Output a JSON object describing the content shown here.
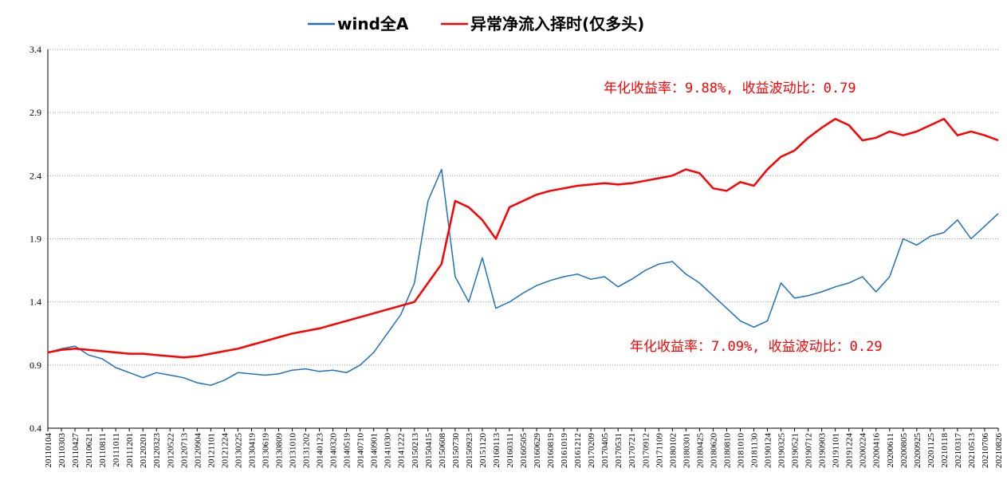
{
  "chart_data": {
    "type": "line",
    "title": "",
    "xlabel": "",
    "ylabel": "",
    "ylim": [
      0.4,
      3.4
    ],
    "yticks": [
      "0.4",
      "0.9",
      "1.4",
      "1.9",
      "2.4",
      "2.9",
      "3.4"
    ],
    "x": [
      "20110104",
      "20110303",
      "20110427",
      "20110621",
      "20110811",
      "20111011",
      "20111201",
      "20120201",
      "20120323",
      "20120522",
      "20120713",
      "20120904",
      "20121101",
      "20121224",
      "20130225",
      "20130419",
      "20130619",
      "20130809",
      "20131010",
      "20131202",
      "20140123",
      "20140320",
      "20140519",
      "20140710",
      "20140901",
      "20141030",
      "20141222",
      "20150213",
      "20150415",
      "20150608",
      "20150730",
      "20150923",
      "20151120",
      "20160113",
      "20160311",
      "20160505",
      "20160629",
      "20160819",
      "20161019",
      "20161212",
      "20170209",
      "20170405",
      "20170531",
      "20170721",
      "20170912",
      "20171109",
      "20180102",
      "20180301",
      "20180425",
      "20180620",
      "20180810",
      "20181010",
      "20181130",
      "20190124",
      "20190325",
      "20190521",
      "20190712",
      "20190903",
      "20191101",
      "20191224",
      "20200224",
      "20200416",
      "20200611",
      "20200805",
      "20200925",
      "20201125",
      "20210118",
      "20210317",
      "20210513",
      "20210706",
      "20210826"
    ],
    "series": [
      {
        "name": "wind全A",
        "color": "#1f6fbf",
        "values": [
          1.0,
          1.03,
          1.05,
          0.98,
          0.95,
          0.88,
          0.84,
          0.8,
          0.84,
          0.82,
          0.8,
          0.76,
          0.74,
          0.78,
          0.84,
          0.83,
          0.82,
          0.83,
          0.86,
          0.87,
          0.85,
          0.86,
          0.84,
          0.9,
          1.0,
          1.15,
          1.3,
          1.55,
          2.2,
          2.45,
          1.6,
          1.4,
          1.75,
          1.35,
          1.4,
          1.47,
          1.53,
          1.57,
          1.6,
          1.62,
          1.58,
          1.6,
          1.52,
          1.58,
          1.65,
          1.7,
          1.72,
          1.62,
          1.55,
          1.45,
          1.35,
          1.25,
          1.2,
          1.25,
          1.55,
          1.43,
          1.45,
          1.48,
          1.52,
          1.55,
          1.6,
          1.48,
          1.6,
          1.9,
          1.85,
          1.92,
          1.95,
          2.05,
          1.9,
          2.0,
          2.1
        ]
      },
      {
        "name": "异常净流入择时(仅多头)",
        "color": "#ff0000",
        "values": [
          1.0,
          1.02,
          1.03,
          1.02,
          1.01,
          1.0,
          0.99,
          0.99,
          0.98,
          0.97,
          0.96,
          0.97,
          0.99,
          1.01,
          1.03,
          1.06,
          1.09,
          1.12,
          1.15,
          1.17,
          1.19,
          1.22,
          1.25,
          1.28,
          1.31,
          1.34,
          1.37,
          1.4,
          1.55,
          1.7,
          2.2,
          2.15,
          2.05,
          1.9,
          2.15,
          2.2,
          2.25,
          2.28,
          2.3,
          2.32,
          2.33,
          2.34,
          2.33,
          2.34,
          2.36,
          2.38,
          2.4,
          2.45,
          2.42,
          2.3,
          2.28,
          2.35,
          2.32,
          2.45,
          2.55,
          2.6,
          2.7,
          2.78,
          2.85,
          2.8,
          2.68,
          2.7,
          2.75,
          2.72,
          2.75,
          2.8,
          2.85,
          2.72,
          2.75,
          2.72,
          2.68
        ]
      }
    ],
    "annotations": [
      "年化收益率：9.88%, 收益波动比：0.79",
      "年化收益率：7.09%, 收益波动比：0.29"
    ],
    "legend_position": "top",
    "grid": "horizontal-dotted"
  }
}
